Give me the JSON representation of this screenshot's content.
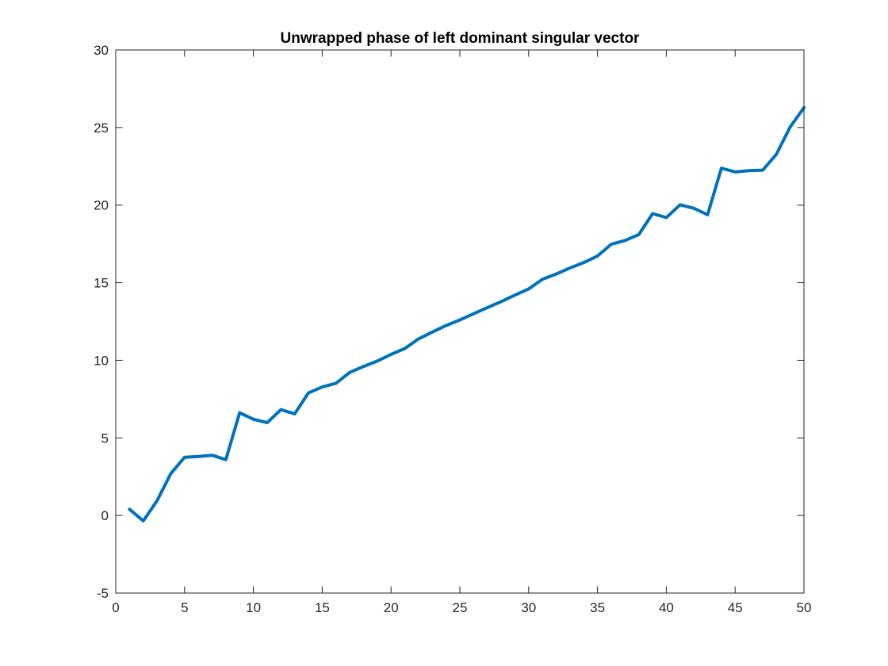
{
  "chart_data": {
    "type": "line",
    "title": "Unwrapped phase of left dominant singular vector",
    "xlabel": "",
    "ylabel": "",
    "xlim": [
      0,
      50
    ],
    "ylim": [
      -5,
      30
    ],
    "xticks": [
      0,
      5,
      10,
      15,
      20,
      25,
      30,
      35,
      40,
      45,
      50
    ],
    "yticks": [
      -5,
      0,
      5,
      10,
      15,
      20,
      25,
      30
    ],
    "grid": false,
    "box": true,
    "series": [
      {
        "color": "#0072BD",
        "x": [
          1,
          2,
          3,
          4,
          5,
          6,
          7,
          8,
          9,
          10,
          11,
          12,
          13,
          14,
          15,
          16,
          17,
          18,
          19,
          20,
          21,
          22,
          23,
          24,
          25,
          26,
          27,
          28,
          29,
          30,
          31,
          32,
          33,
          34,
          35,
          36,
          37,
          38,
          39,
          40,
          41,
          42,
          43,
          44,
          45,
          46,
          47,
          48,
          49,
          50
        ],
        "y": [
          0.4,
          -0.35,
          0.95,
          2.7,
          3.75,
          3.8,
          3.88,
          3.6,
          6.62,
          6.2,
          5.98,
          6.82,
          6.55,
          7.9,
          8.28,
          8.52,
          9.22,
          9.6,
          9.95,
          10.38,
          10.76,
          11.38,
          11.82,
          12.24,
          12.6,
          13.0,
          13.4,
          13.78,
          14.2,
          14.6,
          15.22,
          15.56,
          15.95,
          16.3,
          16.72,
          17.48,
          17.72,
          18.1,
          19.45,
          19.2,
          20.02,
          19.8,
          19.38,
          22.38,
          22.14,
          22.22,
          22.25,
          23.28,
          25.04,
          26.28
        ]
      }
    ]
  }
}
